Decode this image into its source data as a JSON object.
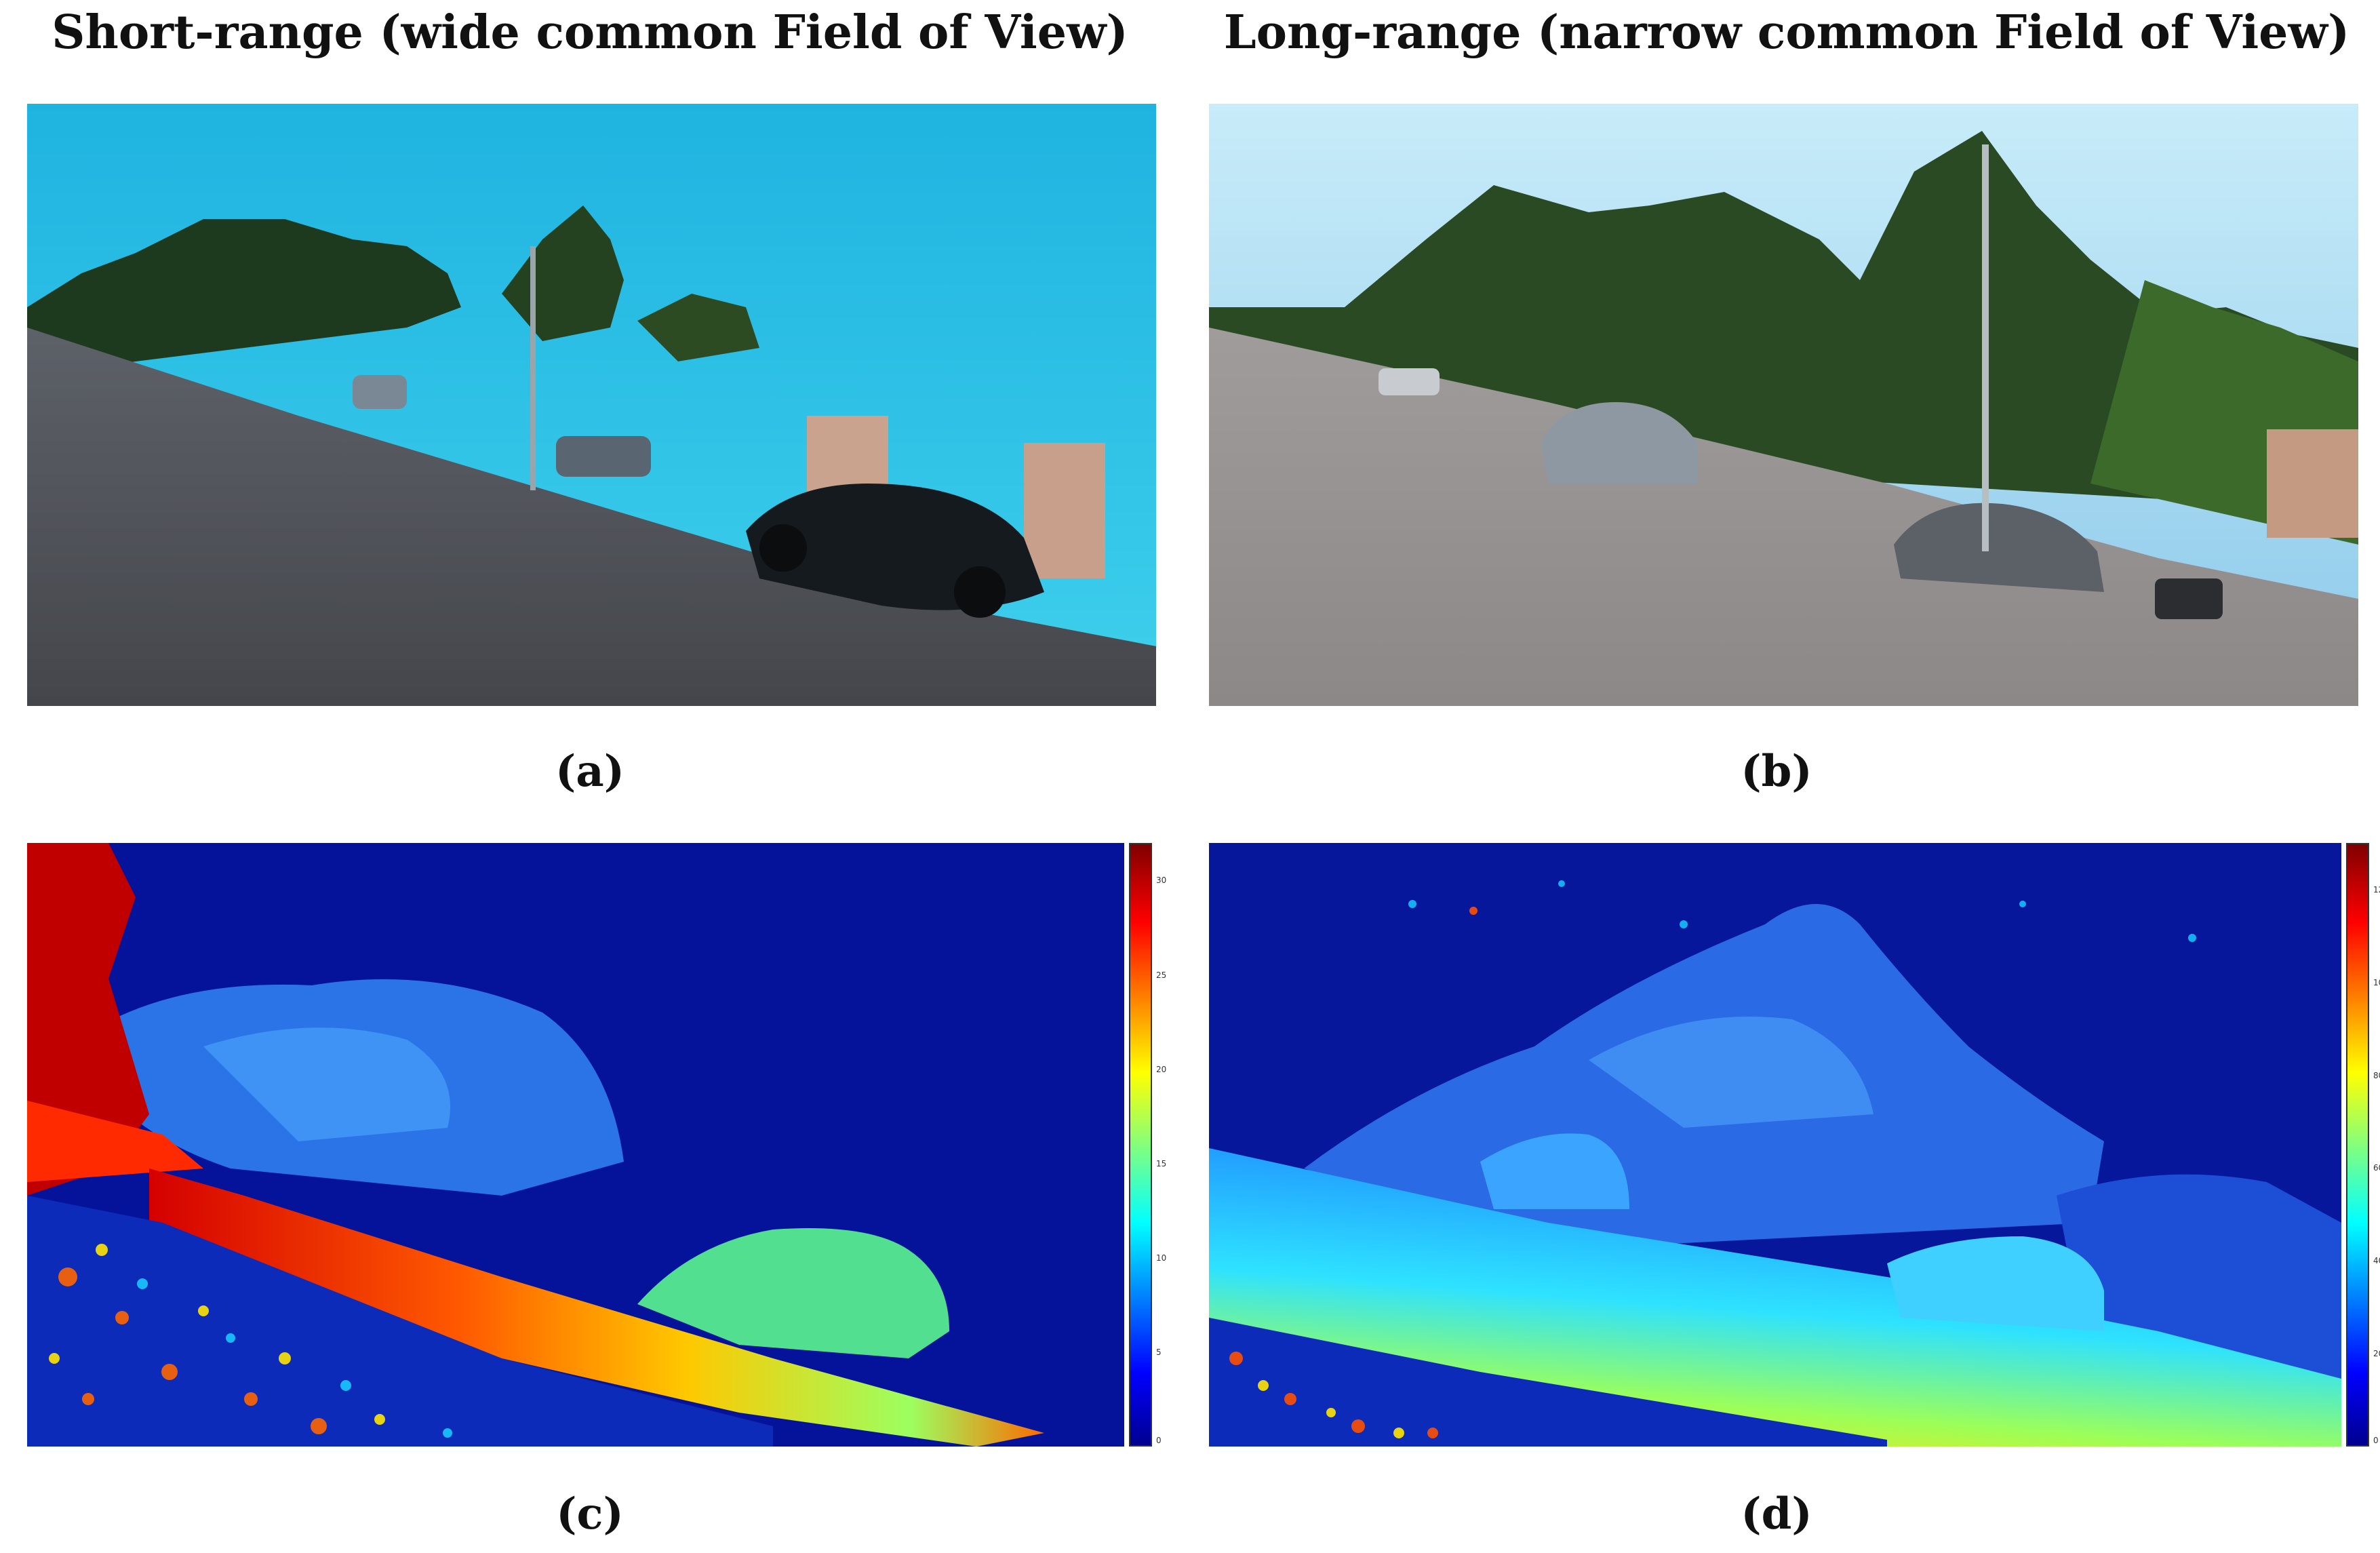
{
  "titles": {
    "left": "Short-range (wide common Field of View)",
    "right": "Long-range (narrow common Field of View)"
  },
  "labels": {
    "a": "(a)",
    "b": "(b)",
    "c": "(c)",
    "d": "(d)"
  },
  "colorbars": {
    "c": {
      "ticks": [
        "30",
        "25",
        "20",
        "15",
        "10",
        "5",
        "0"
      ],
      "min": 0,
      "max": 32
    },
    "d": {
      "ticks": [
        "120",
        "100",
        "80",
        "60",
        "40",
        "20",
        "0"
      ],
      "min": 0,
      "max": 130
    }
  },
  "colors": {
    "jet_low": "#00008f",
    "jet_mid": "#00ffff",
    "jet_high": "#800000",
    "sky_short": "#2ec4e6",
    "sky_long": "#9fd6ef",
    "asphalt": "#55585e"
  }
}
